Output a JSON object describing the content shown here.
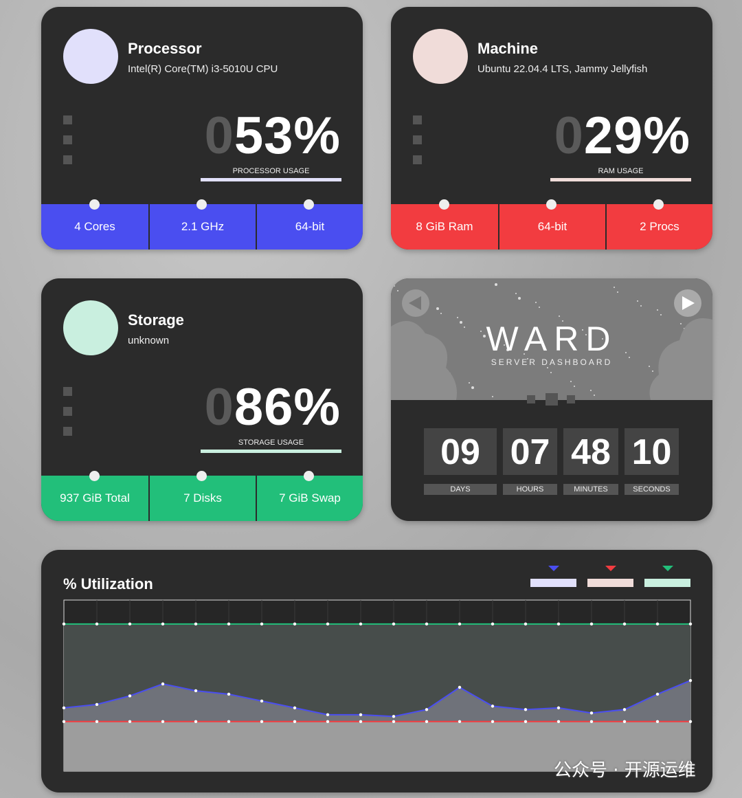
{
  "cards": [
    {
      "title": "Processor",
      "subtitle": "Intel(R) Core(TM) i3-5010U CPU",
      "usage_pad": "0",
      "usage": "53%",
      "usage_label": "PROCESSOR USAGE",
      "light_color": "#e1e0fb",
      "color": "#4a4ef0",
      "stats": [
        "4 Cores",
        "2.1 GHz",
        "64-bit"
      ]
    },
    {
      "title": "Machine",
      "subtitle": "Ubuntu 22.04.4 LTS, Jammy Jellyfish",
      "usage_pad": "0",
      "usage": "29%",
      "usage_label": "RAM USAGE",
      "light_color": "#f0dcd9",
      "color": "#f23c40",
      "stats": [
        "8 GiB Ram",
        "64-bit",
        "2 Procs"
      ]
    },
    {
      "title": "Storage",
      "subtitle": "unknown",
      "usage_pad": "0",
      "usage": "86%",
      "usage_label": "STORAGE USAGE",
      "light_color": "#c9efdf",
      "color": "#22bf7a",
      "stats": [
        "937 GiB Total",
        "7 Disks",
        "7 GiB Swap"
      ]
    }
  ],
  "banner": {
    "title": "WARD",
    "subtitle": "SERVER DASHBOARD"
  },
  "uptime": {
    "values": [
      "09",
      "07",
      "48",
      "10"
    ],
    "labels": [
      "DAYS",
      "HOURS",
      "MINUTES",
      "SECONDS"
    ]
  },
  "utilization": {
    "type": "line",
    "title": "% Utilization",
    "ylim": [
      0,
      100
    ],
    "series": [
      {
        "color": "#4a4ef0",
        "legend_color": "#e1e0fb",
        "values": [
          37,
          39,
          44,
          51,
          47,
          45,
          41,
          37,
          33,
          33,
          32,
          36,
          49,
          38,
          36,
          37,
          34,
          36,
          45,
          53
        ]
      },
      {
        "color": "#f23c40",
        "legend_color": "#f0dcd9",
        "values": [
          29,
          29,
          29,
          29,
          29,
          29,
          29,
          29,
          29,
          29,
          29,
          29,
          29,
          29,
          29,
          29,
          29,
          29,
          29,
          29
        ]
      },
      {
        "color": "#22bf7a",
        "legend_color": "#c9efdf",
        "values": [
          86,
          86,
          86,
          86,
          86,
          86,
          86,
          86,
          86,
          86,
          86,
          86,
          86,
          86,
          86,
          86,
          86,
          86,
          86,
          86
        ]
      }
    ]
  },
  "watermark": "公众号 · 开源运维"
}
